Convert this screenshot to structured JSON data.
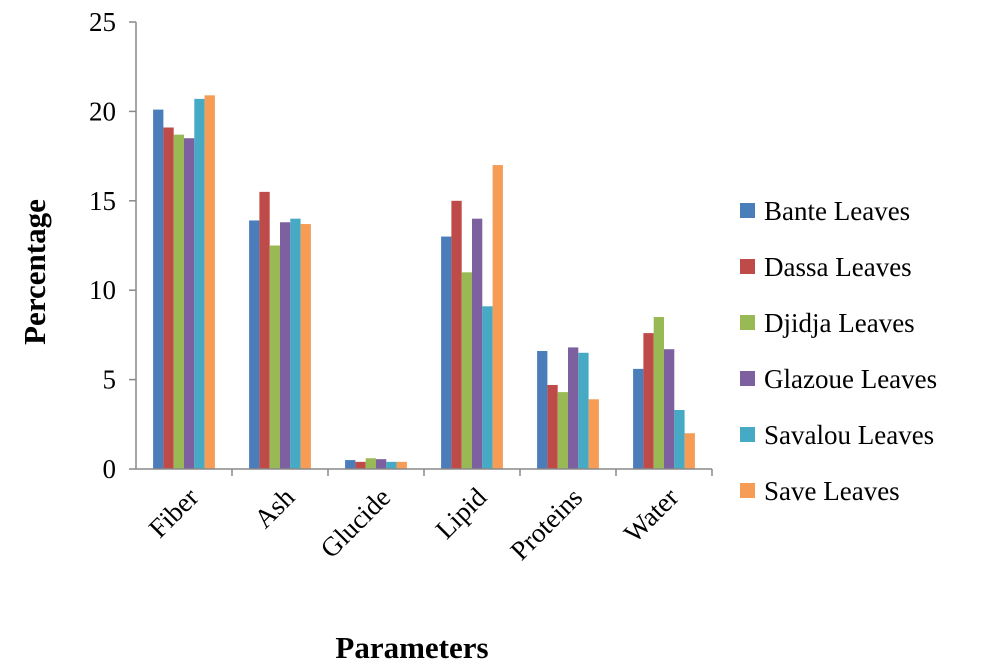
{
  "chart_data": {
    "type": "bar",
    "title": "",
    "xlabel": "Parameters",
    "ylabel": "Percentage",
    "ylim": [
      0,
      25
    ],
    "yticks": [
      0,
      5,
      10,
      15,
      20,
      25
    ],
    "grid": false,
    "legend_position": "right",
    "categories": [
      "Fiber",
      "Ash",
      "Glucide",
      "Lipid",
      "Proteins",
      "Water"
    ],
    "series": [
      {
        "name": "Bante Leaves",
        "color": "#4a7ebb",
        "values": [
          20.1,
          13.9,
          0.5,
          13.0,
          6.6,
          5.6
        ]
      },
      {
        "name": "Dassa Leaves",
        "color": "#be4b48",
        "values": [
          19.1,
          15.5,
          0.4,
          15.0,
          4.7,
          7.6
        ]
      },
      {
        "name": "Djidja Leaves",
        "color": "#98b954",
        "values": [
          18.7,
          12.5,
          0.6,
          11.0,
          4.3,
          8.5
        ]
      },
      {
        "name": "Glazoue Leaves",
        "color": "#7d60a0",
        "values": [
          18.5,
          13.8,
          0.55,
          14.0,
          6.8,
          6.7
        ]
      },
      {
        "name": "Savalou Leaves",
        "color": "#46aac5",
        "values": [
          20.7,
          14.0,
          0.4,
          9.1,
          6.5,
          3.3
        ]
      },
      {
        "name": "Save Leaves",
        "color": "#f59d56",
        "values": [
          20.9,
          13.7,
          0.4,
          17.0,
          3.9,
          2.0
        ]
      }
    ]
  }
}
